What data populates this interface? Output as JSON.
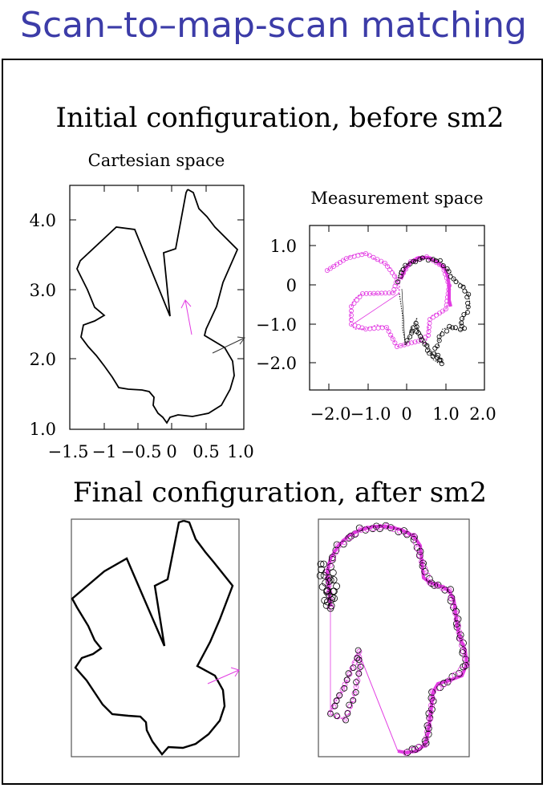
{
  "slide": {
    "title": "Scan–to–map-scan matching"
  },
  "initial": {
    "heading": "Initial configuration, before sm2",
    "cartesian": {
      "title": "Cartesian space",
      "x_ticks": [
        "−1.5",
        "−1",
        "−0.5",
        "0",
        "0.5",
        "1.0"
      ],
      "y_ticks": [
        "4.0",
        "3.0",
        "2.0",
        "1.0"
      ]
    },
    "measurement": {
      "title": "Measurement space",
      "x_ticks": [
        "−2.0",
        "−1.0",
        "0",
        "1.0",
        "2.0"
      ],
      "y_ticks": [
        "1.0",
        "0",
        "−1.0",
        "−2.0"
      ]
    }
  },
  "final": {
    "heading": "Final configuration, after sm2"
  },
  "colors": {
    "title": "#3c3ca8",
    "scan_magenta": "#e23ce2",
    "map_black": "#000000"
  }
}
